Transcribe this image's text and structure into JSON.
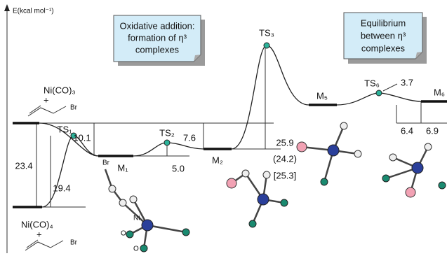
{
  "axis_label": "E(kcal mol⁻¹)",
  "callouts": [
    {
      "lines": [
        "Oxidative addition:",
        "formation of η³",
        "complexes"
      ]
    },
    {
      "lines": [
        "Equilibrium",
        "between η³",
        "complexes"
      ]
    }
  ],
  "reactants": {
    "upper": {
      "formula": "Ni(CO)₃",
      "plus": "+",
      "halide": "Br"
    },
    "lower": {
      "formula": "Ni(CO)₄",
      "plus": "+",
      "halide": "Br"
    }
  },
  "states": [
    "TS₁",
    "M₁",
    "TS₂",
    "M₂",
    "TS₃",
    "M₅",
    "TS₆",
    "M₆"
  ],
  "energies": [
    "23.4",
    "19.4",
    "10.1",
    "5.0",
    "7.6",
    "25.9",
    "(24.2)",
    "[25.3]",
    "3.7",
    "6.4",
    "6.9"
  ],
  "atoms": [
    "Br",
    "Ni",
    "O",
    "O"
  ]
}
